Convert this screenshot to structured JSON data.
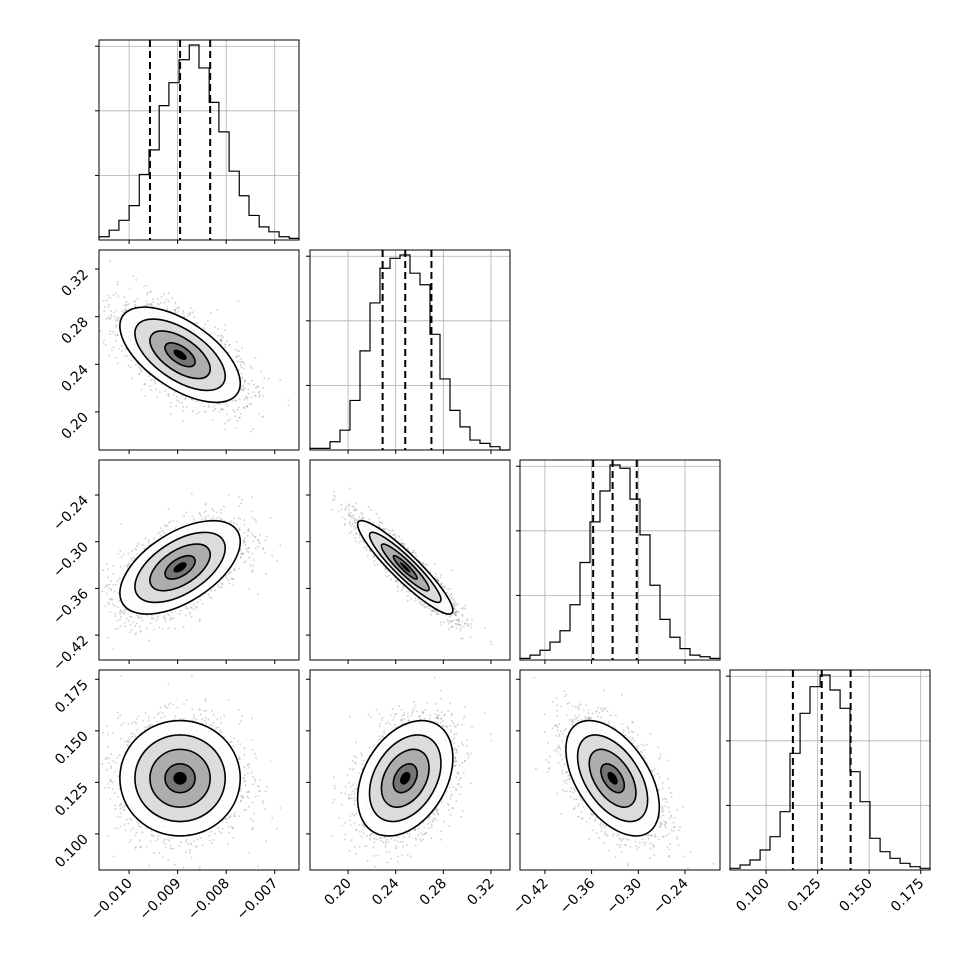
{
  "chart_data": {
    "type": "corner",
    "parameters": [
      {
        "index": 0,
        "quantiles": [
          -0.00957,
          -0.00895,
          -0.00833
        ],
        "range": [
          -0.01062,
          -0.0065
        ],
        "ticks": [
          -0.01,
          -0.009,
          -0.008,
          -0.007
        ],
        "tick_labels": [
          "−0.010",
          "−0.009",
          "−0.008",
          "−0.007"
        ]
      },
      {
        "index": 1,
        "quantiles": [
          0.229,
          0.248,
          0.27
        ],
        "range": [
          0.168,
          0.336
        ],
        "ticks": [
          0.2,
          0.24,
          0.28,
          0.32
        ],
        "tick_labels": [
          "0.20",
          "0.24",
          "0.28",
          "0.32"
        ]
      },
      {
        "index": 2,
        "quantiles": [
          -0.358,
          -0.333,
          -0.302
        ],
        "range": [
          -0.452,
          -0.195
        ],
        "ticks": [
          -0.42,
          -0.36,
          -0.3,
          -0.24
        ],
        "tick_labels": [
          "−0.42",
          "−0.36",
          "−0.30",
          "−0.24"
        ]
      },
      {
        "index": 3,
        "quantiles": [
          0.113,
          0.127,
          0.141
        ],
        "range": [
          0.0825,
          0.1795
        ],
        "ticks": [
          0.1,
          0.125,
          0.15,
          0.175
        ],
        "tick_labels": [
          "0.100",
          "0.125",
          "0.150",
          "0.175"
        ]
      }
    ],
    "histograms": [
      {
        "param": 0,
        "bin_edges": [
          -0.01062,
          -0.01041,
          -0.01021,
          -0.01,
          -0.00979,
          -0.00959,
          -0.00938,
          -0.00918,
          -0.00897,
          -0.00876,
          -0.00856,
          -0.00835,
          -0.00815,
          -0.00794,
          -0.00773,
          -0.00753,
          -0.00732,
          -0.00712,
          -0.00691,
          -0.0067,
          -0.0065
        ],
        "counts": [
          2,
          6,
          12,
          21,
          40,
          55,
          82,
          96,
          110,
          119,
          105,
          84,
          66,
          42,
          27,
          15,
          8,
          5,
          2,
          1
        ]
      },
      {
        "param": 1,
        "bin_edges": [
          0.168,
          0.1764,
          0.1848,
          0.1932,
          0.2016,
          0.21,
          0.2184,
          0.2268,
          0.2352,
          0.2436,
          0.252,
          0.2604,
          0.2688,
          0.2772,
          0.2856,
          0.294,
          0.3024,
          0.3108,
          0.3192,
          0.3276,
          0.336
        ],
        "counts": [
          1,
          1,
          5,
          12,
          30,
          60,
          89,
          110,
          116,
          118,
          107,
          100,
          70,
          43,
          24,
          14,
          6,
          4,
          2,
          0
        ]
      },
      {
        "param": 2,
        "bin_edges": [
          -0.452,
          -0.43915,
          -0.4263,
          -0.41345,
          -0.4006,
          -0.38775,
          -0.3749,
          -0.36205,
          -0.3492,
          -0.33635,
          -0.3235,
          -0.31065,
          -0.2978,
          -0.28495,
          -0.2721,
          -0.25925,
          -0.2464,
          -0.23355,
          -0.2207,
          -0.20785,
          -0.195
        ],
        "counts": [
          1,
          3,
          6,
          11,
          18,
          34,
          60,
          85,
          104,
          120,
          118,
          99,
          77,
          46,
          25,
          14,
          7,
          3,
          2,
          1
        ]
      },
      {
        "param": 3,
        "bin_edges": [
          0.0825,
          0.0874,
          0.0922,
          0.0971,
          0.1019,
          0.1068,
          0.1116,
          0.1165,
          0.1213,
          0.1262,
          0.131,
          0.1359,
          0.1407,
          0.1456,
          0.1504,
          0.1553,
          0.1601,
          0.165,
          0.1698,
          0.1747,
          0.1795
        ],
        "counts": [
          1,
          3,
          6,
          12,
          20,
          35,
          70,
          94,
          110,
          117,
          108,
          97,
          59,
          41,
          19,
          11,
          7,
          4,
          2,
          1
        ]
      }
    ],
    "pairs": [
      {
        "x_param": 0,
        "y_param": 1,
        "mean": [
          -0.00895,
          0.248
        ],
        "sd": [
          0.00062,
          0.02
        ],
        "rho": -0.6
      },
      {
        "x_param": 0,
        "y_param": 2,
        "mean": [
          -0.00895,
          -0.333
        ],
        "sd": [
          0.00062,
          0.03
        ],
        "rho": 0.55
      },
      {
        "x_param": 1,
        "y_param": 2,
        "mean": [
          0.248,
          -0.333
        ],
        "sd": [
          0.02,
          0.03
        ],
        "rho": -0.92
      },
      {
        "x_param": 0,
        "y_param": 3,
        "mean": [
          -0.00895,
          0.127
        ],
        "sd": [
          0.00062,
          0.014
        ],
        "rho": 0.0
      },
      {
        "x_param": 1,
        "y_param": 3,
        "mean": [
          0.248,
          0.127
        ],
        "sd": [
          0.02,
          0.014
        ],
        "rho": 0.35
      },
      {
        "x_param": 2,
        "y_param": 3,
        "mean": [
          -0.333,
          0.127
        ],
        "sd": [
          0.03,
          0.014
        ],
        "rho": -0.5
      }
    ],
    "contour_levels_sigma": [
      0.5,
      1.0,
      1.5,
      2.0
    ],
    "grid": true,
    "colors": {
      "hist": "#000000",
      "points": "#999999",
      "contour": "#000000",
      "quantile_line": "#000000"
    }
  }
}
